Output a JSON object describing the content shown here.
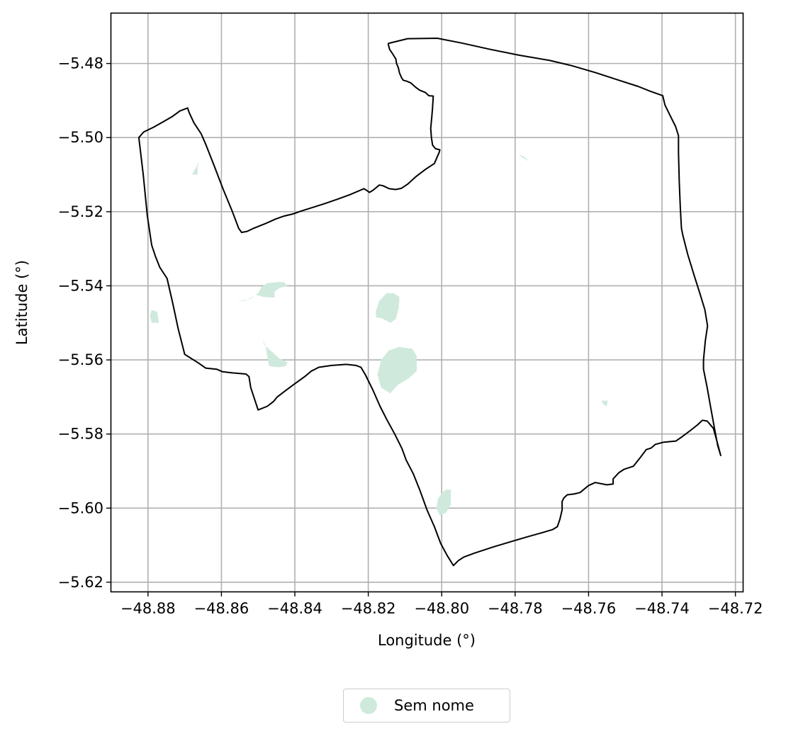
{
  "chart_data": {
    "type": "map",
    "xlabel": "Longitude (°)",
    "ylabel": "Latitude (°)",
    "xlim": [
      -48.89,
      -48.718
    ],
    "ylim": [
      -5.6225,
      -5.4665
    ],
    "xticks": [
      -48.88,
      -48.86,
      -48.84,
      -48.82,
      -48.8,
      -48.78,
      -48.76,
      -48.74,
      -48.72
    ],
    "xtick_labels": [
      "−48.88",
      "−48.86",
      "−48.84",
      "−48.82",
      "−48.80",
      "−48.78",
      "−48.76",
      "−48.74",
      "−48.72"
    ],
    "yticks": [
      -5.48,
      -5.5,
      -5.52,
      -5.54,
      -5.56,
      -5.58,
      -5.6,
      -5.62
    ],
    "ytick_labels": [
      "−5.48",
      "−5.50",
      "−5.52",
      "−5.54",
      "−5.56",
      "−5.58",
      "−5.60",
      "−5.62"
    ],
    "grid": true,
    "legend_position": "bottom-center",
    "legend": [
      {
        "label": "Sem nome",
        "color": "#cfeadd"
      }
    ],
    "boundary": [
      [
        -48.8146,
        -5.4746
      ],
      [
        -48.8093,
        -5.4733
      ],
      [
        -48.8012,
        -5.4732
      ],
      [
        -48.7945,
        -5.4745
      ],
      [
        -48.7868,
        -5.4762
      ],
      [
        -48.7787,
        -5.4778
      ],
      [
        -48.7705,
        -5.4792
      ],
      [
        -48.7645,
        -5.4806
      ],
      [
        -48.758,
        -5.4825
      ],
      [
        -48.7515,
        -5.4846
      ],
      [
        -48.7465,
        -5.4862
      ],
      [
        -48.7432,
        -5.4875
      ],
      [
        -48.7398,
        -5.4887
      ],
      [
        -48.7392,
        -5.4912
      ],
      [
        -48.7377,
        -5.4942
      ],
      [
        -48.7363,
        -5.497
      ],
      [
        -48.7355,
        -5.4995
      ],
      [
        -48.7355,
        -5.504
      ],
      [
        -48.7353,
        -5.512
      ],
      [
        -48.735,
        -5.519
      ],
      [
        -48.7347,
        -5.5245
      ],
      [
        -48.7343,
        -5.5265
      ],
      [
        -48.733,
        -5.5315
      ],
      [
        -48.7313,
        -5.537
      ],
      [
        -48.7297,
        -5.542
      ],
      [
        -48.7283,
        -5.5465
      ],
      [
        -48.7276,
        -5.5508
      ],
      [
        -48.7282,
        -5.5548
      ],
      [
        -48.7287,
        -5.56
      ],
      [
        -48.7287,
        -5.5625
      ],
      [
        -48.7277,
        -5.5675
      ],
      [
        -48.7267,
        -5.573
      ],
      [
        -48.7257,
        -5.5785
      ],
      [
        -48.7248,
        -5.5832
      ],
      [
        -48.724,
        -5.5858
      ],
      [
        -48.7253,
        -5.581
      ],
      [
        -48.726,
        -5.5785
      ],
      [
        -48.7277,
        -5.5765
      ],
      [
        -48.729,
        -5.5763
      ],
      [
        -48.7303,
        -5.5775
      ],
      [
        -48.7322,
        -5.579
      ],
      [
        -48.7345,
        -5.5807
      ],
      [
        -48.7362,
        -5.5819
      ],
      [
        -48.7375,
        -5.582
      ],
      [
        -48.7395,
        -5.5822
      ],
      [
        -48.7418,
        -5.5828
      ],
      [
        -48.743,
        -5.5838
      ],
      [
        -48.7443,
        -5.5842
      ],
      [
        -48.7458,
        -5.5862
      ],
      [
        -48.7478,
        -5.5887
      ],
      [
        -48.7503,
        -5.5895
      ],
      [
        -48.7517,
        -5.5904
      ],
      [
        -48.7533,
        -5.5921
      ],
      [
        -48.7533,
        -5.5935
      ],
      [
        -48.755,
        -5.5937
      ],
      [
        -48.7582,
        -5.5931
      ],
      [
        -48.76,
        -5.5939
      ],
      [
        -48.7623,
        -5.5958
      ],
      [
        -48.764,
        -5.5962
      ],
      [
        -48.7658,
        -5.5964
      ],
      [
        -48.7667,
        -5.5972
      ],
      [
        -48.7672,
        -5.5982
      ],
      [
        -48.7672,
        -5.6005
      ],
      [
        -48.7678,
        -5.603
      ],
      [
        -48.7685,
        -5.605
      ],
      [
        -48.7698,
        -5.6058
      ],
      [
        -48.7722,
        -5.6065
      ],
      [
        -48.7765,
        -5.6077
      ],
      [
        -48.781,
        -5.609
      ],
      [
        -48.786,
        -5.6105
      ],
      [
        -48.7912,
        -5.6122
      ],
      [
        -48.794,
        -5.6132
      ],
      [
        -48.7955,
        -5.6142
      ],
      [
        -48.7968,
        -5.6155
      ],
      [
        -48.7985,
        -5.6128
      ],
      [
        -48.8003,
        -5.6095
      ],
      [
        -48.802,
        -5.605
      ],
      [
        -48.804,
        -5.6005
      ],
      [
        -48.806,
        -5.595
      ],
      [
        -48.8077,
        -5.5908
      ],
      [
        -48.8097,
        -5.587
      ],
      [
        -48.8108,
        -5.584
      ],
      [
        -48.8128,
        -5.58
      ],
      [
        -48.815,
        -5.576
      ],
      [
        -48.8168,
        -5.5725
      ],
      [
        -48.8188,
        -5.568
      ],
      [
        -48.8208,
        -5.564
      ],
      [
        -48.822,
        -5.562
      ],
      [
        -48.8233,
        -5.5615
      ],
      [
        -48.826,
        -5.5612
      ],
      [
        -48.83,
        -5.5615
      ],
      [
        -48.8335,
        -5.562
      ],
      [
        -48.8345,
        -5.5625
      ],
      [
        -48.8355,
        -5.563
      ],
      [
        -48.8373,
        -5.5645
      ],
      [
        -48.8405,
        -5.5668
      ],
      [
        -48.8432,
        -5.5688
      ],
      [
        -48.8448,
        -5.57
      ],
      [
        -48.8458,
        -5.5712
      ],
      [
        -48.8475,
        -5.5725
      ],
      [
        -48.85,
        -5.5735
      ],
      [
        -48.852,
        -5.5675
      ],
      [
        -48.8525,
        -5.5645
      ],
      [
        -48.8533,
        -5.5638
      ],
      [
        -48.857,
        -5.5635
      ],
      [
        -48.8597,
        -5.5632
      ],
      [
        -48.8613,
        -5.5625
      ],
      [
        -48.8643,
        -5.5622
      ],
      [
        -48.8663,
        -5.5608
      ],
      [
        -48.87,
        -5.5585
      ],
      [
        -48.8718,
        -5.5515
      ],
      [
        -48.8733,
        -5.5445
      ],
      [
        -48.8748,
        -5.538
      ],
      [
        -48.8768,
        -5.535
      ],
      [
        -48.878,
        -5.532
      ],
      [
        -48.879,
        -5.529
      ],
      [
        -48.8802,
        -5.521
      ],
      [
        -48.8813,
        -5.51
      ],
      [
        -48.8825,
        -5.5
      ],
      [
        -48.8812,
        -5.4985
      ],
      [
        -48.8785,
        -5.4972
      ],
      [
        -48.8758,
        -5.4957
      ],
      [
        -48.8735,
        -5.4944
      ],
      [
        -48.8713,
        -5.4928
      ],
      [
        -48.8692,
        -5.492
      ],
      [
        -48.8688,
        -5.4932
      ],
      [
        -48.8675,
        -5.496
      ],
      [
        -48.8655,
        -5.499
      ],
      [
        -48.8642,
        -5.502
      ],
      [
        -48.862,
        -5.5075
      ],
      [
        -48.8595,
        -5.514
      ],
      [
        -48.857,
        -5.52
      ],
      [
        -48.8553,
        -5.5245
      ],
      [
        -48.8545,
        -5.5256
      ],
      [
        -48.853,
        -5.5253
      ],
      [
        -48.8513,
        -5.5245
      ],
      [
        -48.848,
        -5.5232
      ],
      [
        -48.8453,
        -5.522
      ],
      [
        -48.843,
        -5.5212
      ],
      [
        -48.8405,
        -5.5206
      ],
      [
        -48.8385,
        -5.5199
      ],
      [
        -48.8353,
        -5.5189
      ],
      [
        -48.8318,
        -5.5178
      ],
      [
        -48.8283,
        -5.5166
      ],
      [
        -48.825,
        -5.5154
      ],
      [
        -48.8212,
        -5.5138
      ],
      [
        -48.8205,
        -5.5142
      ],
      [
        -48.8197,
        -5.5148
      ],
      [
        -48.8187,
        -5.5142
      ],
      [
        -48.817,
        -5.5128
      ],
      [
        -48.816,
        -5.513
      ],
      [
        -48.8143,
        -5.5138
      ],
      [
        -48.8125,
        -5.514
      ],
      [
        -48.811,
        -5.5137
      ],
      [
        -48.8093,
        -5.5126
      ],
      [
        -48.807,
        -5.5105
      ],
      [
        -48.8043,
        -5.5085
      ],
      [
        -48.802,
        -5.507
      ],
      [
        -48.8007,
        -5.504
      ],
      [
        -48.8005,
        -5.5033
      ],
      [
        -48.8017,
        -5.503
      ],
      [
        -48.8025,
        -5.502
      ],
      [
        -48.8028,
        -5.5
      ],
      [
        -48.803,
        -5.4975
      ],
      [
        -48.8027,
        -5.4945
      ],
      [
        -48.8025,
        -5.492
      ],
      [
        -48.8023,
        -5.4888
      ],
      [
        -48.8035,
        -5.4887
      ],
      [
        -48.8045,
        -5.4878
      ],
      [
        -48.806,
        -5.4872
      ],
      [
        -48.807,
        -5.4865
      ],
      [
        -48.8085,
        -5.4852
      ],
      [
        -48.8095,
        -5.4848
      ],
      [
        -48.8105,
        -5.4845
      ],
      [
        -48.811,
        -5.4837
      ],
      [
        -48.8115,
        -5.4825
      ],
      [
        -48.8118,
        -5.4812
      ],
      [
        -48.8123,
        -5.48
      ],
      [
        -48.8125,
        -5.4788
      ],
      [
        -48.8133,
        -5.4775
      ],
      [
        -48.8142,
        -5.4762
      ],
      [
        -48.8146,
        -5.4746
      ]
    ],
    "patches": [
      [
        [
          -48.845,
          -5.539
        ],
        [
          -48.843,
          -5.539
        ],
        [
          -48.842,
          -5.54
        ],
        [
          -48.844,
          -5.5405
        ],
        [
          -48.8455,
          -5.5415
        ],
        [
          -48.8455,
          -5.5432
        ],
        [
          -48.8485,
          -5.543
        ],
        [
          -48.8505,
          -5.5425
        ],
        [
          -48.8535,
          -5.544
        ],
        [
          -48.856,
          -5.5443
        ],
        [
          -48.852,
          -5.5435
        ],
        [
          -48.85,
          -5.542
        ],
        [
          -48.849,
          -5.5402
        ],
        [
          -48.8475,
          -5.5393
        ]
      ],
      [
        [
          -48.815,
          -5.542
        ],
        [
          -48.813,
          -5.542
        ],
        [
          -48.8115,
          -5.543
        ],
        [
          -48.8117,
          -5.546
        ],
        [
          -48.8125,
          -5.549
        ],
        [
          -48.814,
          -5.55
        ],
        [
          -48.8162,
          -5.5488
        ],
        [
          -48.8178,
          -5.5485
        ],
        [
          -48.818,
          -5.547
        ],
        [
          -48.817,
          -5.544
        ]
      ],
      [
        [
          -48.849,
          -5.554
        ],
        [
          -48.848,
          -5.556
        ],
        [
          -48.8475,
          -5.5592
        ],
        [
          -48.847,
          -5.5617
        ],
        [
          -48.8445,
          -5.562
        ],
        [
          -48.8425,
          -5.5617
        ],
        [
          -48.842,
          -5.5606
        ],
        [
          -48.844,
          -5.5598
        ],
        [
          -48.846,
          -5.558
        ],
        [
          -48.8482,
          -5.556
        ]
      ],
      [
        [
          -48.8115,
          -5.5565
        ],
        [
          -48.808,
          -5.557
        ],
        [
          -48.8068,
          -5.559
        ],
        [
          -48.8068,
          -5.563
        ],
        [
          -48.809,
          -5.565
        ],
        [
          -48.812,
          -5.5668
        ],
        [
          -48.814,
          -5.569
        ],
        [
          -48.8165,
          -5.5675
        ],
        [
          -48.8175,
          -5.564
        ],
        [
          -48.8165,
          -5.56
        ],
        [
          -48.8145,
          -5.5575
        ]
      ],
      [
        [
          -48.799,
          -5.595
        ],
        [
          -48.7975,
          -5.595
        ],
        [
          -48.7975,
          -5.599
        ],
        [
          -48.7988,
          -5.6012
        ],
        [
          -48.8005,
          -5.602
        ],
        [
          -48.8015,
          -5.6
        ],
        [
          -48.801,
          -5.5975
        ],
        [
          -48.8,
          -5.596
        ]
      ],
      [
        [
          -48.879,
          -5.5465
        ],
        [
          -48.8775,
          -5.547
        ],
        [
          -48.877,
          -5.55
        ],
        [
          -48.879,
          -5.55
        ],
        [
          -48.8795,
          -5.548
        ]
      ],
      [
        [
          -48.866,
          -5.5065
        ],
        [
          -48.8665,
          -5.508
        ],
        [
          -48.8665,
          -5.51
        ],
        [
          -48.868,
          -5.51
        ],
        [
          -48.8672,
          -5.5085
        ]
      ],
      [
        [
          -48.779,
          -5.5045
        ],
        [
          -48.7785,
          -5.505
        ],
        [
          -48.777,
          -5.506
        ],
        [
          -48.7763,
          -5.5063
        ],
        [
          -48.7775,
          -5.5052
        ]
      ],
      [
        [
          -48.7565,
          -5.571
        ],
        [
          -48.756,
          -5.572
        ],
        [
          -48.755,
          -5.5725
        ],
        [
          -48.7548,
          -5.571
        ]
      ]
    ]
  }
}
